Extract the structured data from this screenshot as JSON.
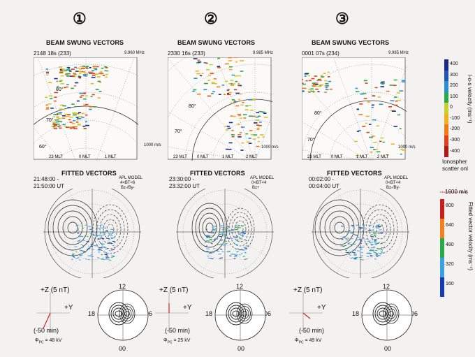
{
  "panels": [
    {
      "number": "①",
      "beam_title": "BEAM SWUNG VECTORS",
      "beam_time": "2148 18s (233)",
      "freq": "9.960 MHz",
      "lat_labels": [
        "80°",
        "70°",
        "60°"
      ],
      "mlt_labels": [
        "23 MLT",
        "0 MLT",
        "1 MLT"
      ],
      "scale_label": "1000 m/s",
      "fitted_title": "FITTED VECTORS",
      "time_start": "21:48:00 -",
      "time_end": "21:50:00 UT",
      "model_line1": "APL MODEL",
      "model_line2": "4<BT<6",
      "model_line3": "Bz-/By-",
      "z_label": "+Z  (5 nT)",
      "y_label": "+Y",
      "lag": "(-50 min)",
      "phi_value": "= 48 kV",
      "clock_12": "12",
      "clock_18": "18",
      "clock_06": "06",
      "clock_00": "00"
    },
    {
      "number": "②",
      "beam_title": "BEAM SWUNG VECTORS",
      "beam_time": "2330 16s (233)",
      "freq": "9.985 MHz",
      "lat_labels": [
        "80°",
        "70°"
      ],
      "mlt_labels": [
        "23 MLT",
        "0 MLT",
        "1 MLT",
        "2 MLT"
      ],
      "scale_label": "1000 m/s",
      "fitted_title": "FITTED VECTORS",
      "time_start": "23:30:00 -",
      "time_end": "23:32:00 UT",
      "model_line1": "APL MODEL",
      "model_line2": "0<BT<4",
      "model_line3": "Bz+",
      "z_label": "+Z  (5 nT)",
      "y_label": "+Y",
      "lag": "(-50 min)",
      "phi_value": "= 25 kV",
      "clock_12": "12",
      "clock_18": "18",
      "clock_06": "06",
      "clock_00": "00"
    },
    {
      "number": "③",
      "beam_title": "BEAM SWUNG VECTORS",
      "beam_time": "0001 07s (234)",
      "freq": "9.985 MHz",
      "lat_labels": [
        "80°",
        "70°"
      ],
      "mlt_labels": [
        "23 MLT",
        "0 MLT",
        "1 MLT",
        "2 MLT"
      ],
      "scale_label": "1000 m/s",
      "fitted_title": "FITTED VECTORS",
      "time_start": "00:02:00 -",
      "time_end": "00:04:00 UT",
      "model_line1": "APL MODEL",
      "model_line2": "0<BT<4",
      "model_line3": "Bz-/By-",
      "z_label": "+Z  (5 nT)",
      "y_label": "+Y",
      "lag": "(-50 min)",
      "phi_value": "= 49 kV",
      "clock_12": "12",
      "clock_18": "18",
      "clock_06": "06",
      "clock_00": "00"
    }
  ],
  "phi_symbol": "Φ",
  "phi_sub": "PC",
  "colorbar_top": {
    "title": "l-o-s velocity (ms⁻¹)",
    "ticks": [
      "400",
      "300",
      "200",
      "100",
      "0",
      "-100",
      "-200",
      "-300",
      "-400"
    ],
    "colors": [
      "#1a2a8a",
      "#1f55b8",
      "#2a8fd0",
      "#2aa84a",
      "#c8d030",
      "#f0b020",
      "#f07a18",
      "#e0401a",
      "#b01818"
    ],
    "note_line1": "Ionospher",
    "note_line2": "scatter onl"
  },
  "colorbar_bottom": {
    "title": "Fitted vector velocity (ms⁻¹)",
    "ref_label": "1600 m/s",
    "ticks": [
      "800",
      "640",
      "480",
      "320",
      "160"
    ],
    "colors": [
      "#c81e1e",
      "#f08020",
      "#2aa84a",
      "#3aa0e0",
      "#1a3ab0"
    ]
  }
}
